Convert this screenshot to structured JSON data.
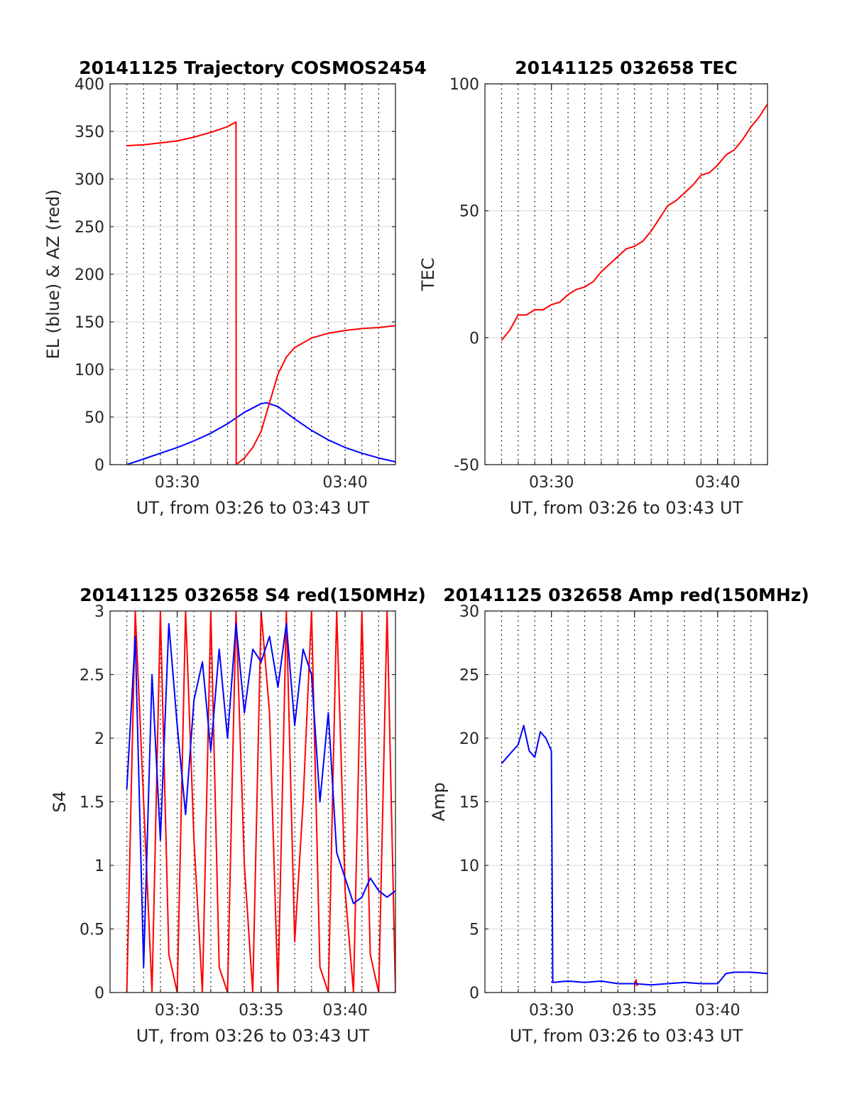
{
  "chart_data": [
    {
      "type": "line",
      "title": "20141125 Trajectory COSMOS2454",
      "xlabel": "UT, from 03:26 to 03:43 UT",
      "ylabel": "EL (blue) & AZ (red)",
      "xlim": [
        "03:26:00",
        "03:43:00"
      ],
      "ylim": [
        0,
        400
      ],
      "xticks": [
        "03:30",
        "03:40"
      ],
      "yticks": [
        0,
        50,
        100,
        150,
        200,
        250,
        300,
        350,
        400
      ],
      "grid": true,
      "series": [
        {
          "color": "#0000ff",
          "x": [
            "03:27:00",
            "03:28:00",
            "03:29:00",
            "03:30:00",
            "03:31:00",
            "03:32:00",
            "03:33:00",
            "03:34:00",
            "03:35:00",
            "03:35:20",
            "03:36:00",
            "03:37:00",
            "03:38:00",
            "03:39:00",
            "03:40:00",
            "03:41:00",
            "03:42:00",
            "03:43:00"
          ],
          "values": [
            0,
            6,
            12,
            18,
            25,
            33,
            43,
            55,
            64,
            65,
            61,
            48,
            36,
            26,
            18,
            12,
            7,
            3
          ]
        },
        {
          "color": "#ff0000",
          "x": [
            "03:27:00",
            "03:28:00",
            "03:29:00",
            "03:30:00",
            "03:31:00",
            "03:32:00",
            "03:33:00",
            "03:33:30",
            "03:33:31",
            "03:34:00",
            "03:34:30",
            "03:35:00",
            "03:35:30",
            "03:36:00",
            "03:36:30",
            "03:37:00",
            "03:38:00",
            "03:39:00",
            "03:40:00",
            "03:41:00",
            "03:42:00",
            "03:43:00"
          ],
          "values": [
            335,
            336,
            338,
            340,
            344,
            349,
            355,
            360,
            0,
            7,
            18,
            35,
            65,
            95,
            113,
            123,
            133,
            138,
            141,
            143,
            144,
            146
          ]
        }
      ]
    },
    {
      "type": "line",
      "title": "20141125 032658 TEC",
      "xlabel": "UT, from 03:26 to 03:43 UT",
      "ylabel": "TEC",
      "xlim": [
        "03:26:00",
        "03:43:00"
      ],
      "ylim": [
        -50,
        100
      ],
      "xticks": [
        "03:30",
        "03:40"
      ],
      "yticks": [
        -50,
        0,
        50,
        100
      ],
      "grid": true,
      "series": [
        {
          "color": "#ff0000",
          "x": [
            "03:27:00",
            "03:27:30",
            "03:28:00",
            "03:28:30",
            "03:29:00",
            "03:29:30",
            "03:30:00",
            "03:30:30",
            "03:31:00",
            "03:31:30",
            "03:32:00",
            "03:32:30",
            "03:33:00",
            "03:33:30",
            "03:34:00",
            "03:34:30",
            "03:35:00",
            "03:35:30",
            "03:36:00",
            "03:36:30",
            "03:37:00",
            "03:37:30",
            "03:38:00",
            "03:38:30",
            "03:39:00",
            "03:39:30",
            "03:40:00",
            "03:40:30",
            "03:41:00",
            "03:41:30",
            "03:42:00",
            "03:42:30",
            "03:43:00"
          ],
          "values": [
            -1,
            3,
            9,
            9,
            11,
            11,
            13,
            14,
            17,
            19,
            20,
            22,
            26,
            29,
            32,
            35,
            36,
            38,
            42,
            47,
            52,
            54,
            57,
            60,
            64,
            65,
            68,
            72,
            74,
            78,
            83,
            87,
            92
          ]
        }
      ]
    },
    {
      "type": "line",
      "title": "20141125 032658 S4 red(150MHz)",
      "xlabel": "UT, from 03:26 to 03:43 UT",
      "ylabel": "S4",
      "xlim": [
        "03:26:00",
        "03:43:00"
      ],
      "ylim": [
        0,
        3
      ],
      "xticks": [
        "03:30",
        "03:35",
        "03:40"
      ],
      "yticks": [
        0,
        0.5,
        1,
        1.5,
        2,
        2.5,
        3
      ],
      "grid": true,
      "series": [
        {
          "color": "#ff0000",
          "x": [
            "03:27:00",
            "03:27:30",
            "03:28:00",
            "03:28:30",
            "03:29:00",
            "03:29:30",
            "03:30:00",
            "03:30:30",
            "03:31:00",
            "03:31:30",
            "03:32:00",
            "03:32:30",
            "03:33:00",
            "03:33:30",
            "03:34:00",
            "03:34:30",
            "03:35:00",
            "03:35:30",
            "03:36:00",
            "03:36:30",
            "03:37:00",
            "03:37:30",
            "03:38:00",
            "03:38:30",
            "03:39:00",
            "03:39:30",
            "03:40:00",
            "03:40:30",
            "03:41:00",
            "03:41:30",
            "03:42:00",
            "03:42:30",
            "03:43:00"
          ],
          "values": [
            0,
            3,
            1.5,
            0,
            3,
            0.3,
            0,
            3,
            1.2,
            0,
            3,
            0.2,
            0,
            3,
            1,
            0,
            3,
            2.2,
            0,
            3,
            0.4,
            1.5,
            3,
            0.2,
            0,
            3,
            0.8,
            0,
            3,
            0.3,
            0,
            3,
            0
          ]
        },
        {
          "color": "#0000ff",
          "x": [
            "03:27:00",
            "03:27:30",
            "03:28:00",
            "03:28:30",
            "03:29:00",
            "03:29:30",
            "03:30:00",
            "03:30:30",
            "03:31:00",
            "03:31:30",
            "03:32:00",
            "03:32:30",
            "03:33:00",
            "03:33:30",
            "03:34:00",
            "03:34:30",
            "03:35:00",
            "03:35:30",
            "03:36:00",
            "03:36:30",
            "03:37:00",
            "03:37:30",
            "03:38:00",
            "03:38:30",
            "03:39:00",
            "03:39:30",
            "03:40:00",
            "03:40:30",
            "03:41:00",
            "03:41:30",
            "03:42:00",
            "03:42:30",
            "03:43:00"
          ],
          "values": [
            1.6,
            2.8,
            0.2,
            2.5,
            1.2,
            2.9,
            2.1,
            1.4,
            2.3,
            2.6,
            1.9,
            2.7,
            2.0,
            2.9,
            2.2,
            2.7,
            2.6,
            2.8,
            2.4,
            2.9,
            2.1,
            2.7,
            2.5,
            1.5,
            2.2,
            1.1,
            0.9,
            0.7,
            0.75,
            0.9,
            0.8,
            0.75,
            0.8
          ]
        }
      ]
    },
    {
      "type": "line",
      "title": "20141125 032658 Amp red(150MHz)",
      "xlabel": "UT, from 03:26 to 03:43 UT",
      "ylabel": "Amp",
      "xlim": [
        "03:26:00",
        "03:43:00"
      ],
      "ylim": [
        0,
        30
      ],
      "xticks": [
        "03:30",
        "03:35",
        "03:40"
      ],
      "yticks": [
        0,
        5,
        10,
        15,
        20,
        25,
        30
      ],
      "grid": true,
      "series": [
        {
          "color": "#ff0000",
          "x": [
            "03:35:00",
            "03:35:05",
            "03:35:10"
          ],
          "values": [
            0.5,
            1.0,
            0.5
          ]
        },
        {
          "color": "#0000ff",
          "x": [
            "03:27:00",
            "03:27:20",
            "03:27:40",
            "03:28:00",
            "03:28:20",
            "03:28:40",
            "03:29:00",
            "03:29:20",
            "03:29:40",
            "03:30:00",
            "03:30:05",
            "03:31:00",
            "03:32:00",
            "03:33:00",
            "03:34:00",
            "03:35:00",
            "03:36:00",
            "03:37:00",
            "03:38:00",
            "03:39:00",
            "03:40:00",
            "03:40:30",
            "03:41:00",
            "03:42:00",
            "03:43:00"
          ],
          "values": [
            18,
            18.5,
            19,
            19.5,
            21,
            19,
            18.5,
            20.5,
            20,
            19,
            0.8,
            0.9,
            0.8,
            0.9,
            0.7,
            0.7,
            0.6,
            0.7,
            0.8,
            0.7,
            0.7,
            1.5,
            1.6,
            1.6,
            1.5
          ]
        }
      ]
    }
  ]
}
